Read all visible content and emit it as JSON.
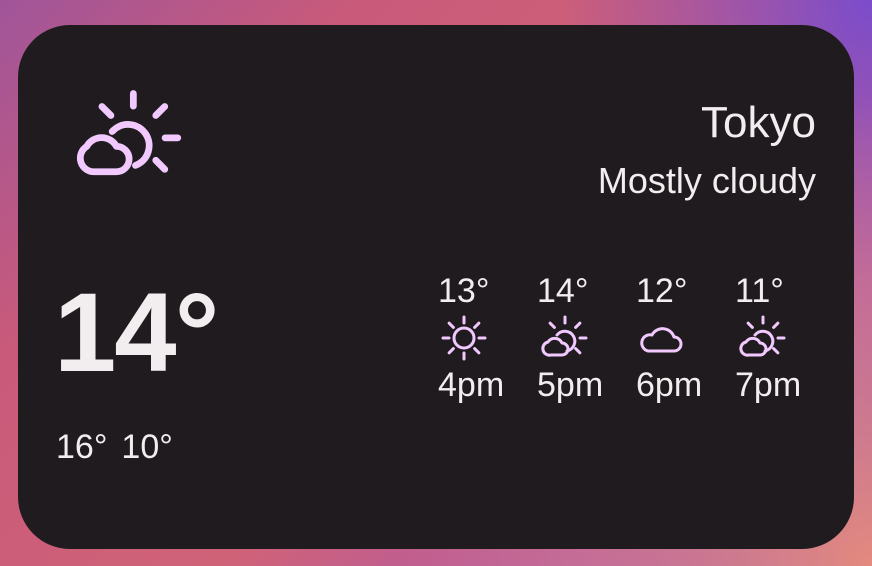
{
  "accent_color": "#f1c9ff",
  "card_color": "#1f1b1e",
  "current": {
    "icon": "partly-cloudy-icon",
    "city": "Tokyo",
    "condition": "Mostly cloudy",
    "temperature": "14°",
    "high": "16°",
    "low": "10°"
  },
  "hourly": [
    {
      "temp": "13°",
      "icon": "sunny-icon",
      "label": "4pm"
    },
    {
      "temp": "14°",
      "icon": "partly-cloudy-icon",
      "label": "5pm"
    },
    {
      "temp": "12°",
      "icon": "cloudy-icon",
      "label": "6pm"
    },
    {
      "temp": "11°",
      "icon": "partly-cloudy-icon",
      "label": "7pm"
    }
  ]
}
